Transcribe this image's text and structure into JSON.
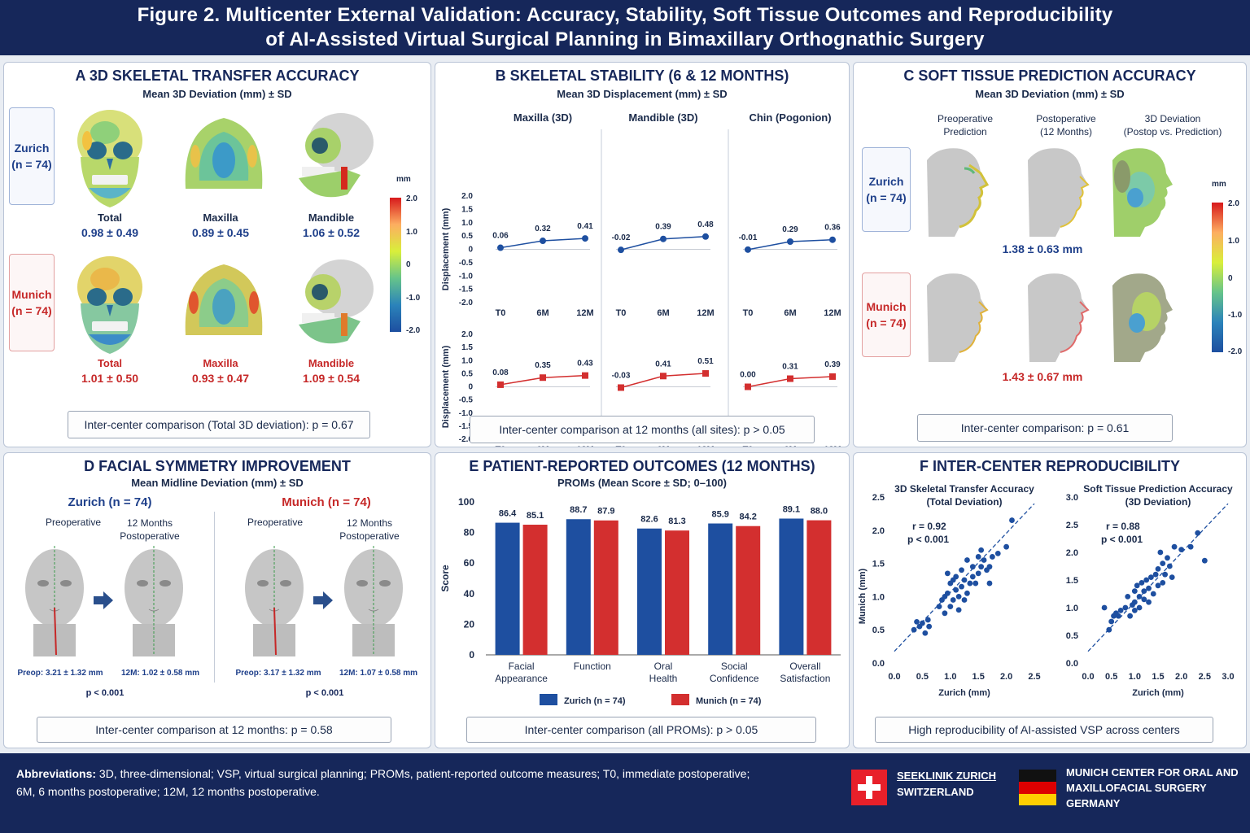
{
  "header": {
    "line1": "Figure 2. Multicenter External Validation: Accuracy, Stability, Soft Tissue Outcomes and Reproducibility",
    "line2": "of AI-Assisted Virtual Surgical Planning in Bimaxillary Orthognathic Surgery"
  },
  "colors": {
    "zurich": "#1e3f8a",
    "munich": "#c62828",
    "navy": "#16275a"
  },
  "panelA": {
    "title": "A  3D SKELETAL TRANSFER ACCURACY",
    "subtitle": "Mean 3D Deviation (mm) ± SD",
    "zurich_label_1": "Zurich",
    "zurich_label_2": "(n = 74)",
    "munich_label_1": "Munich",
    "munich_label_2": "(n = 74)",
    "zurich": [
      {
        "label": "Total",
        "value": "0.98 ± 0.49"
      },
      {
        "label": "Maxilla",
        "value": "0.89 ± 0.45"
      },
      {
        "label": "Mandible",
        "value": "1.06 ± 0.52"
      }
    ],
    "munich": [
      {
        "label": "Total",
        "value": "1.01 ± 0.50"
      },
      {
        "label": "Maxilla",
        "value": "0.93 ± 0.47"
      },
      {
        "label": "Mandible",
        "value": "1.09 ± 0.54"
      }
    ],
    "colorbar": {
      "unit": "mm",
      "ticks": [
        "2.0",
        "1.0",
        "0",
        "-1.0",
        "-2.0"
      ]
    },
    "comparison": "Inter-center comparison (Total 3D deviation): p = 0.67"
  },
  "panelC": {
    "title": "C  SOFT TISSUE PREDICTION ACCURACY",
    "subtitle": "Mean 3D Deviation (mm) ± SD",
    "col1_l1": "Preoperative",
    "col1_l2": "Prediction",
    "col2_l1": "Postoperative",
    "col2_l2": "(12 Months)",
    "col3_l1": "3D Deviation",
    "col3_l2": "(Postop vs. Prediction)",
    "zurich_label_1": "Zurich",
    "zurich_label_2": "(n = 74)",
    "munich_label_1": "Munich",
    "munich_label_2": "(n = 74)",
    "zurich_value": "1.38 ± 0.63 mm",
    "munich_value": "1.43 ± 0.67 mm",
    "colorbar": {
      "unit": "mm",
      "ticks": [
        "2.0",
        "1.0",
        "0",
        "-1.0",
        "-2.0"
      ]
    },
    "comparison": "Inter-center comparison: p = 0.61"
  },
  "panelD": {
    "title": "D  FACIAL SYMMETRY IMPROVEMENT",
    "subtitle": "Mean Midline Deviation (mm) ± SD",
    "zurich_title": "Zurich (n = 74)",
    "munich_title": "Munich (n = 74)",
    "pre_label": "Preoperative",
    "post_l1": "12 Months",
    "post_l2": "Postoperative",
    "zurich_pre": "Preop: 3.21 ± 1.32 mm",
    "zurich_post": "12M: 1.02 ± 0.58 mm",
    "zurich_p": "p < 0.001",
    "munich_pre": "Preop: 3.17 ± 1.32 mm",
    "munich_post": "12M: 1.07 ± 0.58 mm",
    "munich_p": "p < 0.001",
    "comparison": "Inter-center comparison at 12 months: p = 0.58"
  },
  "footer": {
    "abbr_label": "Abbreviations:",
    "abbr_text": " 3D, three-dimensional; VSP, virtual surgical planning; PROMs, patient-reported outcome measures; T0, immediate postoperative;",
    "abbr_text2": "6M, 6 months postoperative; 12M, 12 months postoperative.",
    "zurich_l1": "SEEKLINIK ZURICH",
    "zurich_l2": "SWITZERLAND",
    "munich_l1": "MUNICH CENTER FOR ORAL AND",
    "munich_l2": "MAXILLOFACIAL SURGERY",
    "munich_l3": "GERMANY"
  },
  "chart_data": [
    {
      "panel": "B",
      "type": "line",
      "title": "B  SKELETAL STABILITY (6 & 12 MONTHS)",
      "subtitle": "Mean 3D Displacement (mm) ± SD",
      "ylabel": "Displacement (mm)",
      "ylim": [
        -2.0,
        2.0
      ],
      "yticks": [
        "2.0",
        "1.5",
        "1.0",
        "0.5",
        "0",
        "-0.5",
        "-1.0",
        "-1.5",
        "-2.0"
      ],
      "x": [
        "T0",
        "6M",
        "12M"
      ],
      "sites": [
        "Maxilla (3D)",
        "Mandible (3D)",
        "Chin (Pogonion)"
      ],
      "series": [
        {
          "name": "Zurich (n = 74)",
          "color": "#1e4fa0",
          "marker": "circle",
          "values": [
            [
              0.06,
              0.32,
              0.41
            ],
            [
              -0.02,
              0.39,
              0.48
            ],
            [
              -0.01,
              0.29,
              0.36
            ]
          ],
          "labels": [
            [
              "0.06",
              "0.32",
              "0.41"
            ],
            [
              "-0.02",
              "0.39",
              "0.48"
            ],
            [
              "-0.01",
              "0.29",
              "0.36"
            ]
          ]
        },
        {
          "name": "Munich (n = 74)",
          "color": "#d32f2f",
          "marker": "square",
          "values": [
            [
              0.08,
              0.35,
              0.43
            ],
            [
              -0.03,
              0.41,
              0.51
            ],
            [
              0.0,
              0.31,
              0.39
            ]
          ],
          "labels": [
            [
              "0.08",
              "0.35",
              "0.43"
            ],
            [
              "-0.03",
              "0.41",
              "0.51"
            ],
            [
              "0.00",
              "0.31",
              "0.39"
            ]
          ]
        }
      ],
      "comparison": "Inter-center comparison at 12 months (all sites): p > 0.05"
    },
    {
      "panel": "E",
      "type": "bar",
      "title": "E  PATIENT-REPORTED OUTCOMES (12 MONTHS)",
      "subtitle": "PROMs (Mean Score ± SD; 0–100)",
      "ylabel": "Score",
      "ylim": [
        0,
        100
      ],
      "yticks": [
        "100",
        "80",
        "60",
        "40",
        "20",
        "0"
      ],
      "categories": [
        [
          "Facial",
          "Appearance"
        ],
        [
          "Function"
        ],
        [
          "Oral",
          "Health"
        ],
        [
          "Social",
          "Confidence"
        ],
        [
          "Overall",
          "Satisfaction"
        ]
      ],
      "series": [
        {
          "name": "Zurich (n = 74)",
          "color": "#1e4fa0",
          "values": [
            86.4,
            88.7,
            82.6,
            85.9,
            89.1
          ],
          "labels": [
            "86.4",
            "88.7",
            "82.6",
            "85.9",
            "89.1"
          ]
        },
        {
          "name": "Munich (n = 74)",
          "color": "#d32f2f",
          "values": [
            85.1,
            87.9,
            81.3,
            84.2,
            88.0
          ],
          "labels": [
            "85.1",
            "87.9",
            "81.3",
            "84.2",
            "88.0"
          ]
        }
      ],
      "comparison": "Inter-center comparison (all PROMs): p > 0.05"
    },
    {
      "panel": "F",
      "type": "scatter",
      "title": "F  INTER-CENTER REPRODUCIBILITY",
      "plots": [
        {
          "title1": "3D Skeletal Transfer Accuracy",
          "title2": "(Total Deviation)",
          "xlabel": "Zurich (mm)",
          "ylabel": "Munich (mm)",
          "xlim": [
            0,
            2.5
          ],
          "ylim": [
            0,
            2.5
          ],
          "xticks": [
            "0.0",
            "0.5",
            "1.0",
            "1.5",
            "2.0",
            "2.5"
          ],
          "yticks": [
            "0.0",
            "0.5",
            "1.0",
            "1.5",
            "2.0",
            "2.5"
          ],
          "r": "r = 0.92",
          "p": "p < 0.001",
          "points": [
            [
              0.35,
              0.5
            ],
            [
              0.4,
              0.62
            ],
            [
              0.45,
              0.55
            ],
            [
              0.5,
              0.6
            ],
            [
              0.55,
              0.45
            ],
            [
              0.6,
              0.65
            ],
            [
              0.62,
              0.55
            ],
            [
              0.8,
              0.85
            ],
            [
              0.85,
              0.95
            ],
            [
              0.9,
              1.0
            ],
            [
              0.9,
              0.75
            ],
            [
              0.95,
              1.05
            ],
            [
              1.0,
              0.85
            ],
            [
              1.0,
              1.2
            ],
            [
              1.05,
              0.95
            ],
            [
              1.05,
              1.25
            ],
            [
              1.1,
              1.1
            ],
            [
              1.1,
              1.3
            ],
            [
              1.15,
              0.8
            ],
            [
              1.15,
              1.0
            ],
            [
              1.2,
              1.15
            ],
            [
              1.2,
              1.4
            ],
            [
              1.25,
              1.25
            ],
            [
              1.3,
              1.05
            ],
            [
              1.3,
              1.55
            ],
            [
              1.35,
              1.2
            ],
            [
              1.4,
              1.3
            ],
            [
              1.4,
              1.45
            ],
            [
              1.45,
              1.2
            ],
            [
              1.5,
              1.35
            ],
            [
              1.5,
              1.6
            ],
            [
              1.55,
              1.7
            ],
            [
              1.55,
              1.45
            ],
            [
              1.6,
              1.55
            ],
            [
              1.65,
              1.4
            ],
            [
              1.7,
              1.2
            ],
            [
              1.7,
              1.45
            ],
            [
              1.75,
              1.6
            ],
            [
              1.85,
              1.65
            ],
            [
              2.0,
              1.75
            ],
            [
              2.1,
              2.15
            ],
            [
              1.25,
              0.95
            ],
            [
              0.95,
              1.35
            ]
          ]
        },
        {
          "title1": "Soft Tissue Prediction Accuracy",
          "title2": "(3D Deviation)",
          "xlabel": "Zurich (mm)",
          "ylabel": "",
          "xlim": [
            0,
            3.0
          ],
          "ylim": [
            0,
            3.0
          ],
          "xticks": [
            "0.0",
            "0.5",
            "1.0",
            "1.5",
            "2.0",
            "2.5",
            "3.0"
          ],
          "yticks": [
            "0.0",
            "0.5",
            "1.0",
            "1.5",
            "2.0",
            "2.5",
            "3.0"
          ],
          "r": "r = 0.88",
          "p": "p < 0.001",
          "points": [
            [
              0.35,
              1.0
            ],
            [
              0.45,
              0.6
            ],
            [
              0.5,
              0.75
            ],
            [
              0.55,
              0.85
            ],
            [
              0.6,
              0.9
            ],
            [
              0.65,
              0.85
            ],
            [
              0.7,
              0.95
            ],
            [
              0.8,
              1.0
            ],
            [
              0.85,
              1.2
            ],
            [
              0.9,
              0.85
            ],
            [
              0.95,
              1.05
            ],
            [
              1.0,
              1.1
            ],
            [
              1.0,
              1.3
            ],
            [
              1.05,
              1.4
            ],
            [
              1.1,
              1.0
            ],
            [
              1.1,
              1.2
            ],
            [
              1.15,
              1.45
            ],
            [
              1.2,
              1.3
            ],
            [
              1.2,
              1.15
            ],
            [
              1.25,
              1.5
            ],
            [
              1.3,
              1.35
            ],
            [
              1.35,
              1.55
            ],
            [
              1.4,
              1.25
            ],
            [
              1.45,
              1.6
            ],
            [
              1.5,
              1.7
            ],
            [
              1.5,
              1.4
            ],
            [
              1.55,
              2.0
            ],
            [
              1.6,
              1.45
            ],
            [
              1.65,
              1.6
            ],
            [
              1.7,
              1.9
            ],
            [
              1.75,
              1.75
            ],
            [
              1.8,
              1.55
            ],
            [
              1.85,
              2.1
            ],
            [
              2.0,
              2.05
            ],
            [
              2.2,
              2.1
            ],
            [
              2.35,
              2.35
            ],
            [
              2.5,
              1.85
            ],
            [
              1.3,
              1.1
            ],
            [
              1.0,
              0.95
            ],
            [
              1.6,
              1.8
            ]
          ]
        }
      ],
      "comparison": "High reproducibility of AI-assisted VSP across centers"
    }
  ]
}
